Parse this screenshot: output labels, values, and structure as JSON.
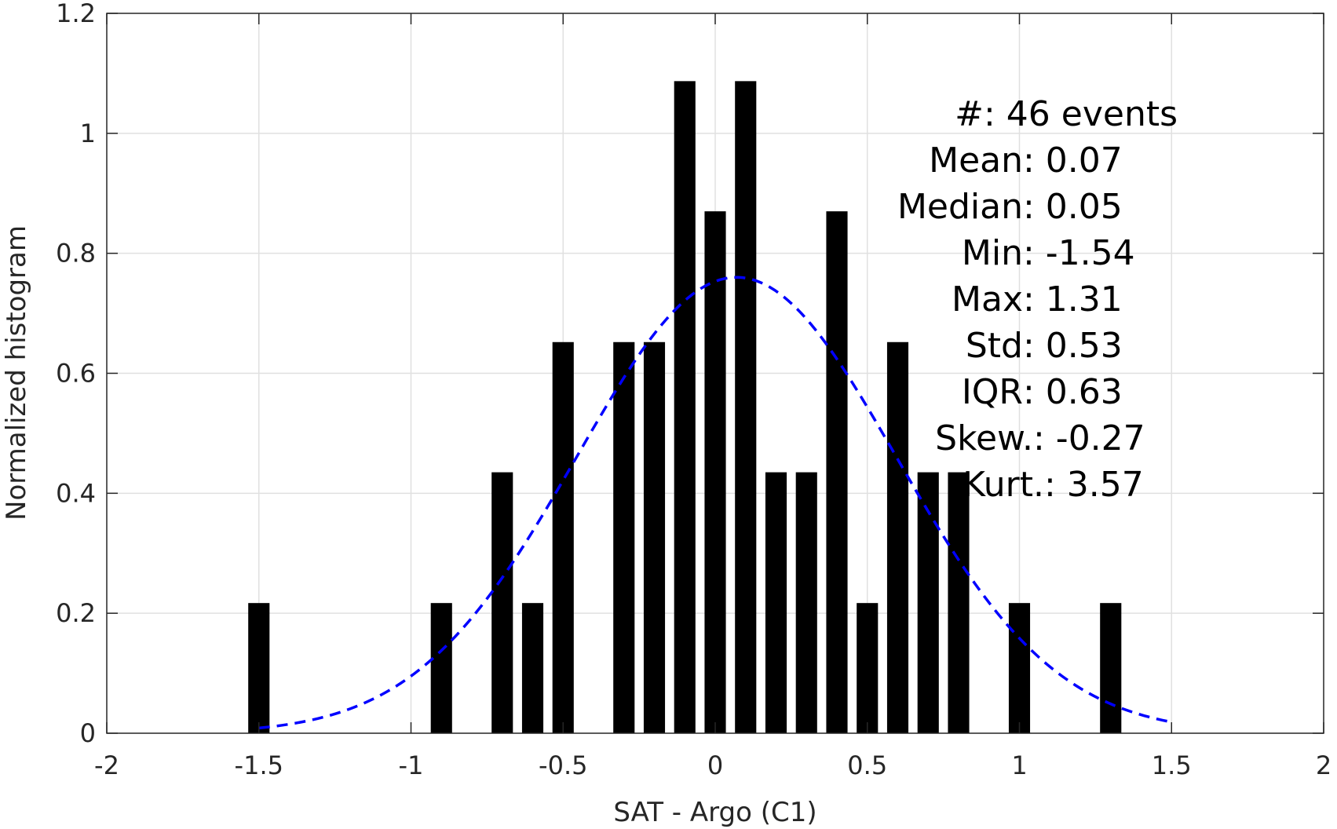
{
  "chart_data": {
    "type": "bar",
    "title": "",
    "xlabel": "SAT - Argo (C1)",
    "ylabel": "Normalized histogram",
    "xlim": [
      -2,
      2
    ],
    "ylim": [
      0,
      1.2
    ],
    "grid": true,
    "x_ticks": [
      -2,
      -1.5,
      -1,
      -0.5,
      0,
      0.5,
      1,
      1.5,
      2
    ],
    "x_tick_labels": [
      "-2",
      "-1.5",
      "-1",
      "-0.5",
      "0",
      "0.5",
      "1",
      "1.5",
      "2"
    ],
    "y_ticks": [
      0,
      0.2,
      0.4,
      0.6,
      0.8,
      1,
      1.2
    ],
    "y_tick_labels": [
      "0",
      "0.2",
      "0.4",
      "0.6",
      "0.8",
      "1",
      "1.2"
    ],
    "bar_color": "#000000",
    "bar_width": 0.07,
    "bars": [
      {
        "x": -1.5,
        "y": 0.217
      },
      {
        "x": -0.9,
        "y": 0.217
      },
      {
        "x": -0.7,
        "y": 0.435
      },
      {
        "x": -0.6,
        "y": 0.217
      },
      {
        "x": -0.5,
        "y": 0.652
      },
      {
        "x": -0.3,
        "y": 0.652
      },
      {
        "x": -0.2,
        "y": 0.652
      },
      {
        "x": -0.1,
        "y": 1.087
      },
      {
        "x": 0.0,
        "y": 0.87
      },
      {
        "x": 0.1,
        "y": 1.087
      },
      {
        "x": 0.2,
        "y": 0.435
      },
      {
        "x": 0.3,
        "y": 0.435
      },
      {
        "x": 0.4,
        "y": 0.87
      },
      {
        "x": 0.5,
        "y": 0.217
      },
      {
        "x": 0.6,
        "y": 0.652
      },
      {
        "x": 0.7,
        "y": 0.435
      },
      {
        "x": 0.8,
        "y": 0.435
      },
      {
        "x": 1.0,
        "y": 0.217
      },
      {
        "x": 1.3,
        "y": 0.217
      }
    ],
    "fit_curve": {
      "style": "dashed",
      "color": "#0000ff",
      "mean": 0.07,
      "std": 0.525,
      "x_range": [
        -1.5,
        1.5
      ]
    },
    "stats": [
      {
        "label": "#  ",
        "value": ": 46 events"
      },
      {
        "label": "Mean ",
        "value": ": 0.07"
      },
      {
        "label": "Median ",
        "value": ": 0.05"
      },
      {
        "label": "Min ",
        "value": ": -1.54"
      },
      {
        "label": "Max ",
        "value": ": 1.31"
      },
      {
        "label": "Std ",
        "value": ": 0.53"
      },
      {
        "label": "IQR ",
        "value": ": 0.63"
      },
      {
        "label": "Skew. ",
        "value": ": -0.27"
      },
      {
        "label": "Kurt. ",
        "value": ": 3.57"
      }
    ]
  }
}
